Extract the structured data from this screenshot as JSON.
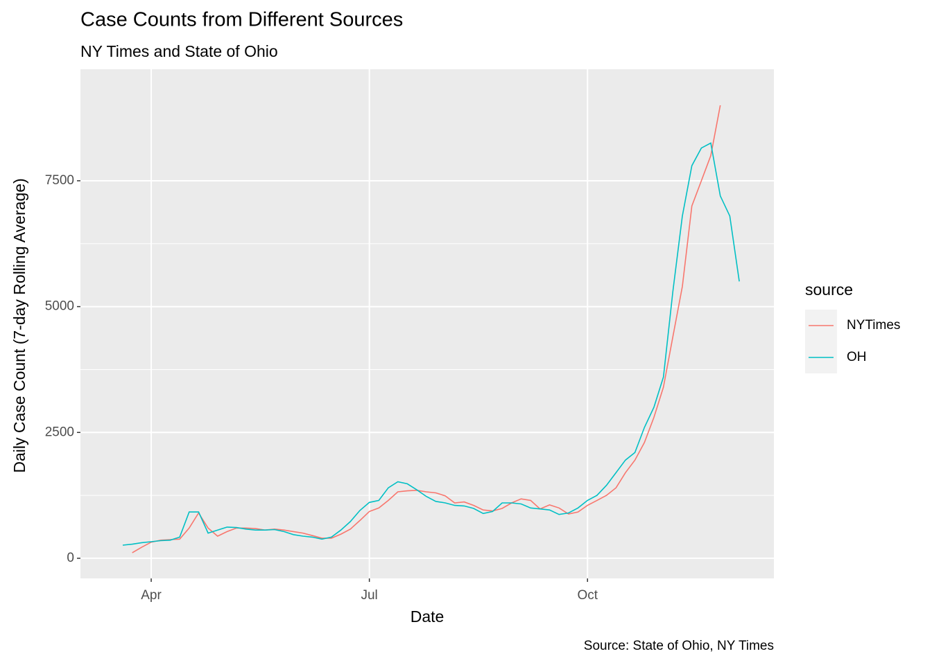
{
  "chart_data": {
    "type": "line",
    "title": "Case Counts from Different Sources",
    "subtitle": "NY Times and State of Ohio",
    "x_label": "Date",
    "y_label": "Daily Case Count (7-day Rolling Average)",
    "caption": "Source: State of Ohio, NY Times",
    "legend_title": "source",
    "legend_position": "right",
    "grid": true,
    "categories": [
      null,
      null,
      null,
      "Apr",
      null,
      null,
      null,
      null,
      null,
      null,
      null,
      null,
      null,
      null,
      null,
      null,
      null,
      null,
      null,
      null,
      null,
      null,
      null,
      null,
      null,
      null,
      "Jul",
      null,
      null,
      null,
      null,
      null,
      null,
      null,
      null,
      null,
      null,
      null,
      null,
      null,
      null,
      null,
      null,
      null,
      null,
      null,
      null,
      null,
      null,
      "Oct",
      null,
      null,
      null,
      null,
      null,
      null,
      null,
      null,
      null,
      null,
      null,
      null,
      null,
      null,
      null,
      null
    ],
    "ylim": [
      -400,
      9715
    ],
    "yticks": [
      0,
      2500,
      5000,
      7500
    ],
    "series": [
      {
        "name": "NYTimes",
        "color": "#F8766D",
        "values": [
          null,
          110,
          220,
          320,
          360,
          370,
          380,
          600,
          900,
          600,
          440,
          530,
          600,
          600,
          590,
          560,
          580,
          560,
          530,
          500,
          450,
          400,
          400,
          480,
          580,
          750,
          930,
          1000,
          1150,
          1320,
          1340,
          1350,
          1320,
          1300,
          1240,
          1100,
          1120,
          1050,
          960,
          940,
          990,
          1100,
          1180,
          1150,
          980,
          1060,
          1000,
          880,
          920,
          1050,
          1150,
          1250,
          1400,
          1700,
          1950,
          2300,
          2800,
          3400,
          4400,
          5400,
          7000,
          7500,
          8000,
          9000,
          null,
          null
        ]
      },
      {
        "name": "OH",
        "color": "#00BFC4",
        "values": [
          260,
          280,
          310,
          330,
          350,
          360,
          420,
          920,
          920,
          500,
          560,
          620,
          610,
          580,
          560,
          560,
          570,
          530,
          470,
          440,
          420,
          380,
          420,
          560,
          730,
          950,
          1110,
          1150,
          1400,
          1520,
          1480,
          1360,
          1230,
          1130,
          1100,
          1050,
          1040,
          990,
          890,
          930,
          1100,
          1100,
          1080,
          1000,
          980,
          960,
          870,
          900,
          1000,
          1150,
          1250,
          1450,
          1700,
          1950,
          2100,
          2600,
          3000,
          3600,
          5300,
          6800,
          7800,
          8150,
          8250,
          7200,
          6800,
          5500
        ]
      }
    ]
  }
}
